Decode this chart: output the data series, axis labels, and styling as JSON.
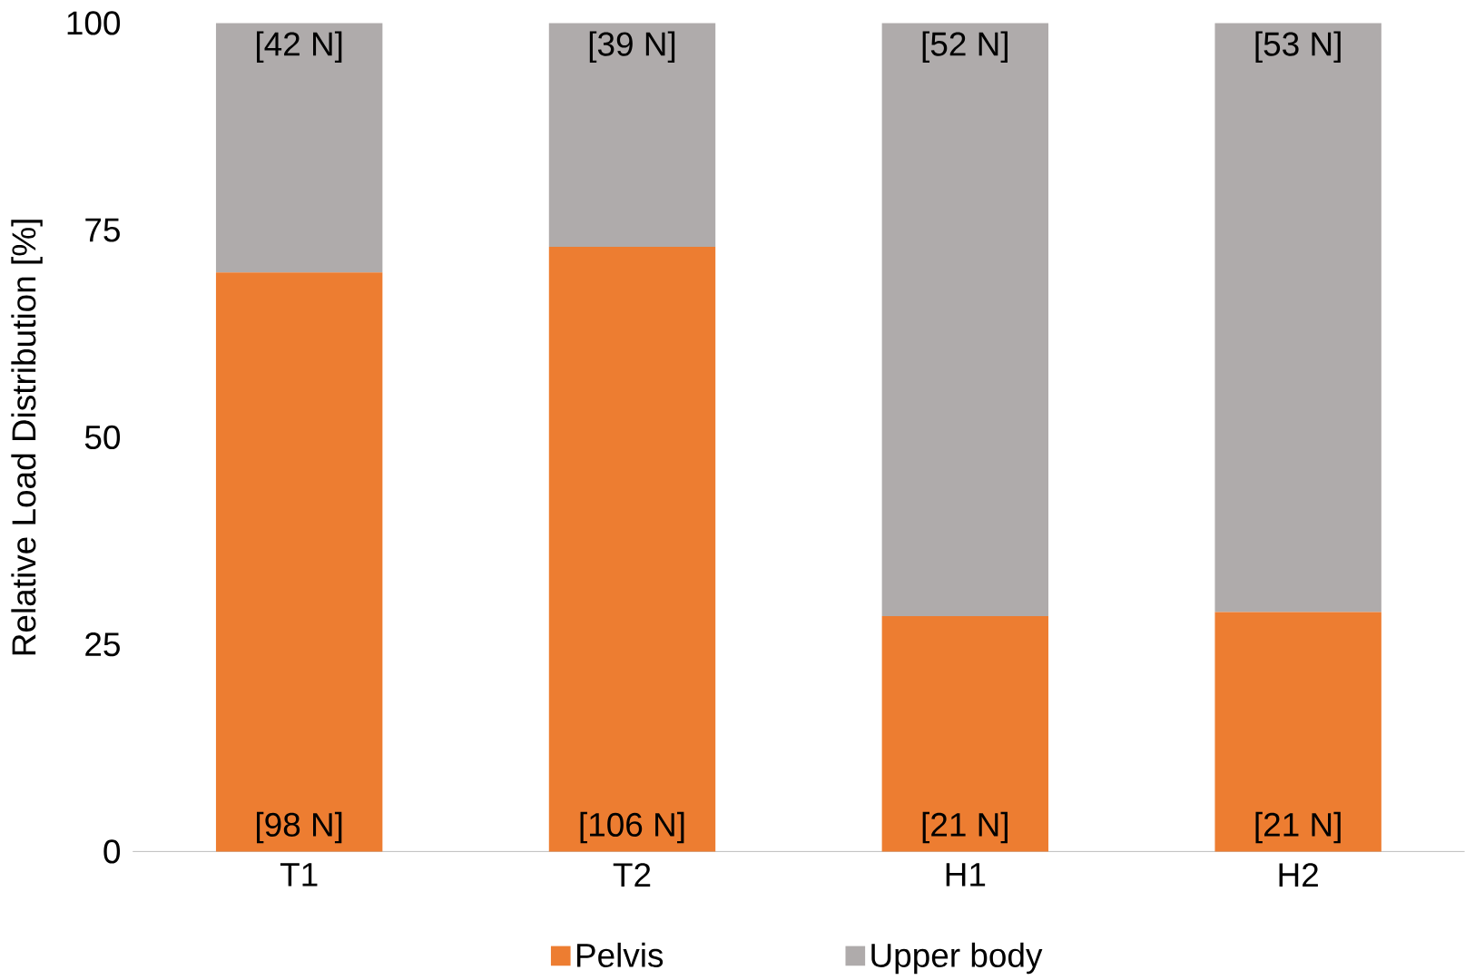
{
  "chart_data": {
    "type": "bar",
    "stacked": true,
    "ylabel": "Relative Load Distribution [%]",
    "categories": [
      "T1",
      "T2",
      "H1",
      "H2"
    ],
    "series": [
      {
        "name": "Pelvis",
        "color": "#ed7d31",
        "values": [
          69.9,
          73.0,
          28.4,
          28.9
        ]
      },
      {
        "name": "Upper body",
        "color": "#afabab",
        "values": [
          30.1,
          27.0,
          71.6,
          71.1
        ]
      }
    ],
    "annotations": [
      {
        "text": "[98 N]",
        "x": "T1",
        "y": 0
      },
      {
        "text": "[106 N]",
        "x": "T2",
        "y": 0
      },
      {
        "text": "[21 N]",
        "x": "H1",
        "y": 0
      },
      {
        "text": "[21 N]",
        "x": "H2",
        "y": 0
      },
      {
        "text": "[42 N]",
        "x": "T1",
        "y": 100
      },
      {
        "text": "[39 N]",
        "x": "T2",
        "y": 100
      },
      {
        "text": "[52 N]",
        "x": "H1",
        "y": 100
      },
      {
        "text": "[53 N]",
        "x": "H2",
        "y": 100
      }
    ],
    "ylim": [
      0,
      100
    ],
    "yticks": [
      0,
      25,
      50,
      75,
      100
    ],
    "legend": "bottom"
  }
}
